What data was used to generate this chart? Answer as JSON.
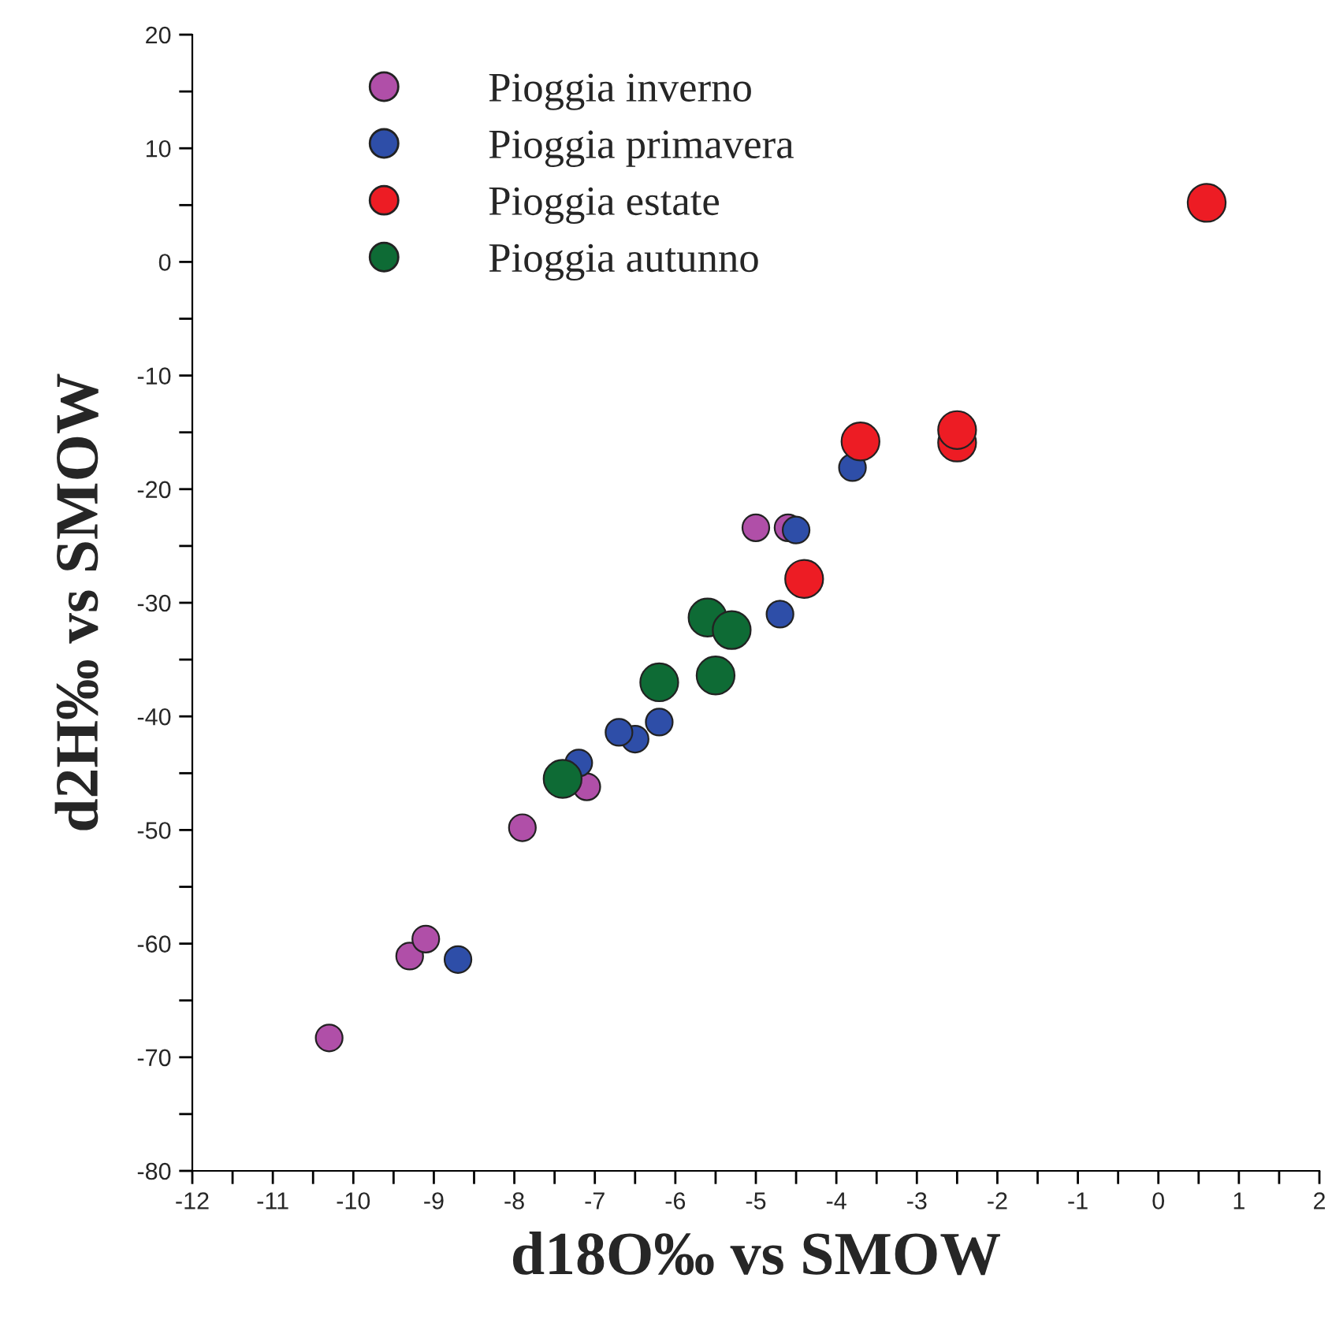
{
  "chart_data": {
    "type": "scatter",
    "xlabel": "d18O‰ vs SMOW",
    "ylabel": "d2H‰ vs SMOW",
    "xlim": [
      -12,
      2
    ],
    "ylim": [
      -80,
      20
    ],
    "xticks": [
      -12,
      {
        "value": -11.5,
        "label": null
      },
      -11,
      {
        "value": -10.5,
        "label": null
      },
      -10,
      {
        "value": -9.5,
        "label": null
      },
      -9,
      {
        "value": -8.5,
        "label": null
      },
      -8,
      {
        "value": -7.5,
        "label": null
      },
      -7,
      {
        "value": -6.5,
        "label": null
      },
      -6,
      {
        "value": -5.5,
        "label": null
      },
      -5,
      {
        "value": -4.5,
        "label": null
      },
      -4,
      {
        "value": -3.5,
        "label": null
      },
      -3,
      {
        "value": -2.5,
        "label": null
      },
      -2,
      {
        "value": -1.5,
        "label": null
      },
      -1,
      {
        "value": -0.5,
        "label": null
      },
      0,
      {
        "value": 0.5,
        "label": null
      },
      1,
      {
        "value": 1.5,
        "label": null
      },
      2
    ],
    "yticks": [
      -80,
      {
        "value": -75,
        "label": null
      },
      -70,
      {
        "value": -65,
        "label": null
      },
      -60,
      {
        "value": -55,
        "label": null
      },
      -50,
      {
        "value": -45,
        "label": null
      },
      -40,
      {
        "value": -35,
        "label": null
      },
      -30,
      {
        "value": -25,
        "label": null
      },
      -20,
      {
        "value": -15,
        "label": null
      },
      -10,
      {
        "value": -5,
        "label": null
      },
      0,
      {
        "value": 5,
        "label": null
      },
      10,
      {
        "value": 15,
        "label": null
      },
      20
    ],
    "grid": false,
    "legend": "top left",
    "marker": "circle",
    "series": [
      {
        "name": "Pioggia inverno",
        "color": "#b04fa8",
        "x": [
          -10.3,
          -9.3,
          -9.1,
          -7.9,
          -7.1,
          -5.0,
          -4.6
        ],
        "values": [
          -68.3,
          -61.1,
          -59.6,
          -49.8,
          -46.2,
          -23.4,
          -23.4
        ]
      },
      {
        "name": "Pioggia primavera",
        "color": "#2e4ea8",
        "x": [
          -8.7,
          -7.2,
          -6.5,
          -6.7,
          -6.2,
          -4.7,
          -4.5,
          -3.8
        ],
        "values": [
          -61.4,
          -44.1,
          -42.0,
          -41.4,
          -40.5,
          -31.0,
          -23.6,
          -18.1
        ]
      },
      {
        "name": "Pioggia estate",
        "color": "#ed1c24",
        "x": [
          0.6,
          -3.7,
          -2.5,
          -2.5,
          -4.4
        ],
        "values": [
          5.2,
          -15.8,
          -15.9,
          -14.8,
          -27.9
        ]
      },
      {
        "name": "Pioggia autunno",
        "color": "#0e6b35",
        "x": [
          -7.4,
          -6.2,
          -5.5,
          -5.6,
          -5.3
        ],
        "values": [
          -45.5,
          -37.0,
          -36.4,
          -31.3,
          -32.4
        ]
      }
    ]
  }
}
